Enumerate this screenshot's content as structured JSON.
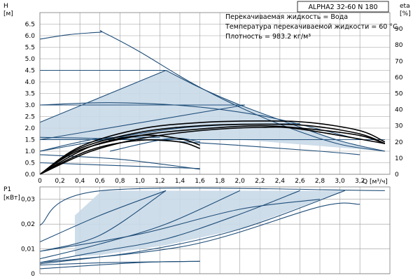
{
  "chart_data": [
    {
      "type": "line",
      "title": "ALPHA2 32-60 N 180",
      "annotations": [
        "Перекачиваемая жидкость = Вода",
        "Температура перекачиваемой жидкости = 60 °C",
        "Плотность = 983.2 кг/м³"
      ],
      "ylabel": "H",
      "yunit": "[м]",
      "y2label": "eta",
      "y2unit": "[%]",
      "xlabel": "Q",
      "xunit": "[м³/ч]",
      "xlim": [
        0,
        3.5
      ],
      "ylim": [
        0,
        7
      ],
      "y2lim": [
        0,
        100
      ],
      "x_ticks": [
        "0",
        "0,2",
        "0,4",
        "0,6",
        "0,8",
        "1,0",
        "1,2",
        "1,4",
        "1,6",
        "1,8",
        "2,0",
        "2,2",
        "2,4",
        "2,6",
        "2,8",
        "3,0",
        "3,2"
      ],
      "y_ticks": [
        "0.0",
        "0.5",
        "1.0",
        "1.5",
        "2.0",
        "2.5",
        "3.0",
        "3.5",
        "4.0",
        "4.5",
        "5.0",
        "5.5",
        "6.0",
        "6.5"
      ],
      "y2_ticks": [
        "0",
        "10",
        "20",
        "30",
        "40",
        "50",
        "60",
        "70",
        "80",
        "90"
      ],
      "grid": true,
      "colors": {
        "curve": "#1f4e79",
        "fill": "#c9d9e8",
        "eta": "#000000",
        "grid": "#9a9a9a"
      },
      "series": [
        {
          "kind": "pump",
          "x": [
            0,
            0.3,
            0.6,
            0.63,
            1.0,
            1.5,
            2.0,
            2.5,
            3.0,
            3.45
          ],
          "y": [
            5.85,
            6.05,
            6.15,
            6.15,
            5.3,
            4.0,
            2.9,
            2.0,
            1.3,
            1.0
          ]
        },
        {
          "kind": "pump",
          "x": [
            0,
            1.26
          ],
          "y": [
            4.5,
            4.5
          ]
        },
        {
          "kind": "pump",
          "x": [
            0,
            1.26
          ],
          "y": [
            2.25,
            4.5
          ]
        },
        {
          "kind": "pump",
          "x": [
            1.26,
            1.6,
            2.0,
            2.5,
            3.0,
            3.45
          ],
          "y": [
            4.5,
            3.75,
            3.0,
            2.2,
            1.45,
            1.0
          ]
        },
        {
          "kind": "pump",
          "x": [
            0,
            2.05
          ],
          "y": [
            3.0,
            3.0
          ]
        },
        {
          "kind": "pump",
          "x": [
            0,
            2.05
          ],
          "y": [
            1.5,
            3.0
          ]
        },
        {
          "kind": "pump",
          "x": [
            0,
            0.7,
            1.5,
            2.2,
            2.7,
            3.2
          ],
          "y": [
            3.0,
            3.1,
            2.95,
            2.55,
            2.05,
            1.5
          ]
        },
        {
          "kind": "pump",
          "x": [
            0,
            3.45
          ],
          "y": [
            1.5,
            1.5
          ]
        },
        {
          "kind": "pump",
          "x": [
            0,
            1.4,
            2.6
          ],
          "y": [
            1.0,
            2.0,
            2.2
          ]
        },
        {
          "kind": "pump",
          "x": [
            0,
            1.0,
            2.0,
            2.8,
            3.2
          ],
          "y": [
            1.6,
            1.5,
            1.25,
            1.0,
            0.85
          ]
        },
        {
          "kind": "pump",
          "x": [
            0,
            0.8,
            1.6
          ],
          "y": [
            0.85,
            0.65,
            0.22
          ]
        },
        {
          "kind": "pump",
          "x": [
            0,
            1.6
          ],
          "y": [
            0.5,
            0.25
          ]
        },
        {
          "kind": "pump",
          "x": [
            0,
            0.6,
            1.2
          ],
          "y": [
            1.0,
            1.55,
            1.6
          ]
        },
        {
          "kind": "pump",
          "x": [
            0.7,
            1.3,
            1.6
          ],
          "y": [
            1.0,
            1.55,
            1.4
          ]
        },
        {
          "kind": "eta",
          "x": [
            0,
            0.4,
            1.0,
            1.6,
            2.2,
            2.7,
            3.2,
            3.45
          ],
          "y": [
            0,
            17,
            28,
            32,
            33,
            32,
            27,
            20
          ]
        },
        {
          "kind": "eta",
          "x": [
            0,
            0.4,
            1.0,
            1.6,
            2.2,
            2.7,
            3.2,
            3.45
          ],
          "y": [
            0,
            16,
            26,
            30,
            31,
            30,
            25,
            19
          ]
        },
        {
          "kind": "eta",
          "x": [
            0,
            0.4,
            1.0,
            1.6,
            2.2,
            2.7,
            3.2,
            3.45
          ],
          "y": [
            0,
            15,
            24,
            28,
            30,
            28,
            24,
            19
          ]
        },
        {
          "kind": "eta",
          "x": [
            0,
            0.5,
            1.0,
            1.6,
            2.2,
            2.6,
            3.45
          ],
          "y": [
            0,
            14,
            22,
            27,
            29,
            28,
            19
          ]
        },
        {
          "kind": "eta",
          "x": [
            0,
            0.5,
            1.0,
            1.4,
            1.6
          ],
          "y": [
            0,
            17,
            24,
            22,
            18
          ]
        },
        {
          "kind": "eta",
          "x": [
            0,
            0.5,
            1.0,
            1.4,
            1.6
          ],
          "y": [
            0,
            15,
            21,
            20,
            16
          ]
        }
      ],
      "regions": [
        {
          "x": [
            0,
            1.26,
            1.6,
            2.0,
            2.5,
            3.0,
            3.45,
            2.0,
            0
          ],
          "y": [
            2.25,
            4.5,
            3.75,
            3.0,
            2.2,
            1.45,
            1.0,
            1.5,
            1.5
          ]
        }
      ]
    },
    {
      "type": "line",
      "ylabel": "P1",
      "yunit": "[кВт]",
      "xlim": [
        0,
        3.5
      ],
      "ylim": [
        0,
        0.035
      ],
      "y_ticks": [
        "0",
        "0,01",
        "0,02",
        "0,03"
      ],
      "grid": true,
      "series": [
        {
          "x": [
            0,
            0.62,
            3.45
          ],
          "y": [
            0.0195,
            0.0335,
            0.0335
          ]
        },
        {
          "x": [
            0,
            0.6,
            1.26
          ],
          "y": [
            0.0128,
            0.0235,
            0.0335
          ]
        },
        {
          "x": [
            0,
            0.6,
            1.26
          ],
          "y": [
            0.009,
            0.0155,
            0.0335
          ]
        },
        {
          "x": [
            0,
            0.6,
            1.26,
            2.0
          ],
          "y": [
            0.006,
            0.012,
            0.02,
            0.0335
          ]
        },
        {
          "x": [
            0,
            0.6,
            1.26,
            2.0,
            2.6
          ],
          "y": [
            0.0045,
            0.009,
            0.014,
            0.024,
            0.0335
          ]
        },
        {
          "x": [
            0,
            1.0,
            2.0,
            3.05
          ],
          "y": [
            0.004,
            0.009,
            0.018,
            0.0335
          ]
        },
        {
          "x": [
            0,
            1.5,
            2.8,
            3.2
          ],
          "y": [
            0.0045,
            0.0115,
            0.027,
            0.028
          ]
        },
        {
          "x": [
            0,
            1.0,
            2.0,
            2.8
          ],
          "y": [
            0.009,
            0.016,
            0.026,
            0.03
          ]
        },
        {
          "x": [
            0,
            0.7,
            1.6
          ],
          "y": [
            0.0035,
            0.0045,
            0.005
          ]
        },
        {
          "x": [
            0,
            1.0,
            1.6
          ],
          "y": [
            0.002,
            0.0045,
            0.005
          ]
        }
      ],
      "regions": [
        {
          "x": [
            0.35,
            0.62,
            1.26,
            3.45,
            3.05,
            2.0,
            1.26,
            0.6,
            0.35
          ],
          "y": [
            0.0235,
            0.0335,
            0.0335,
            0.0335,
            0.0335,
            0.018,
            0.0115,
            0.0075,
            0.007
          ]
        }
      ]
    }
  ]
}
